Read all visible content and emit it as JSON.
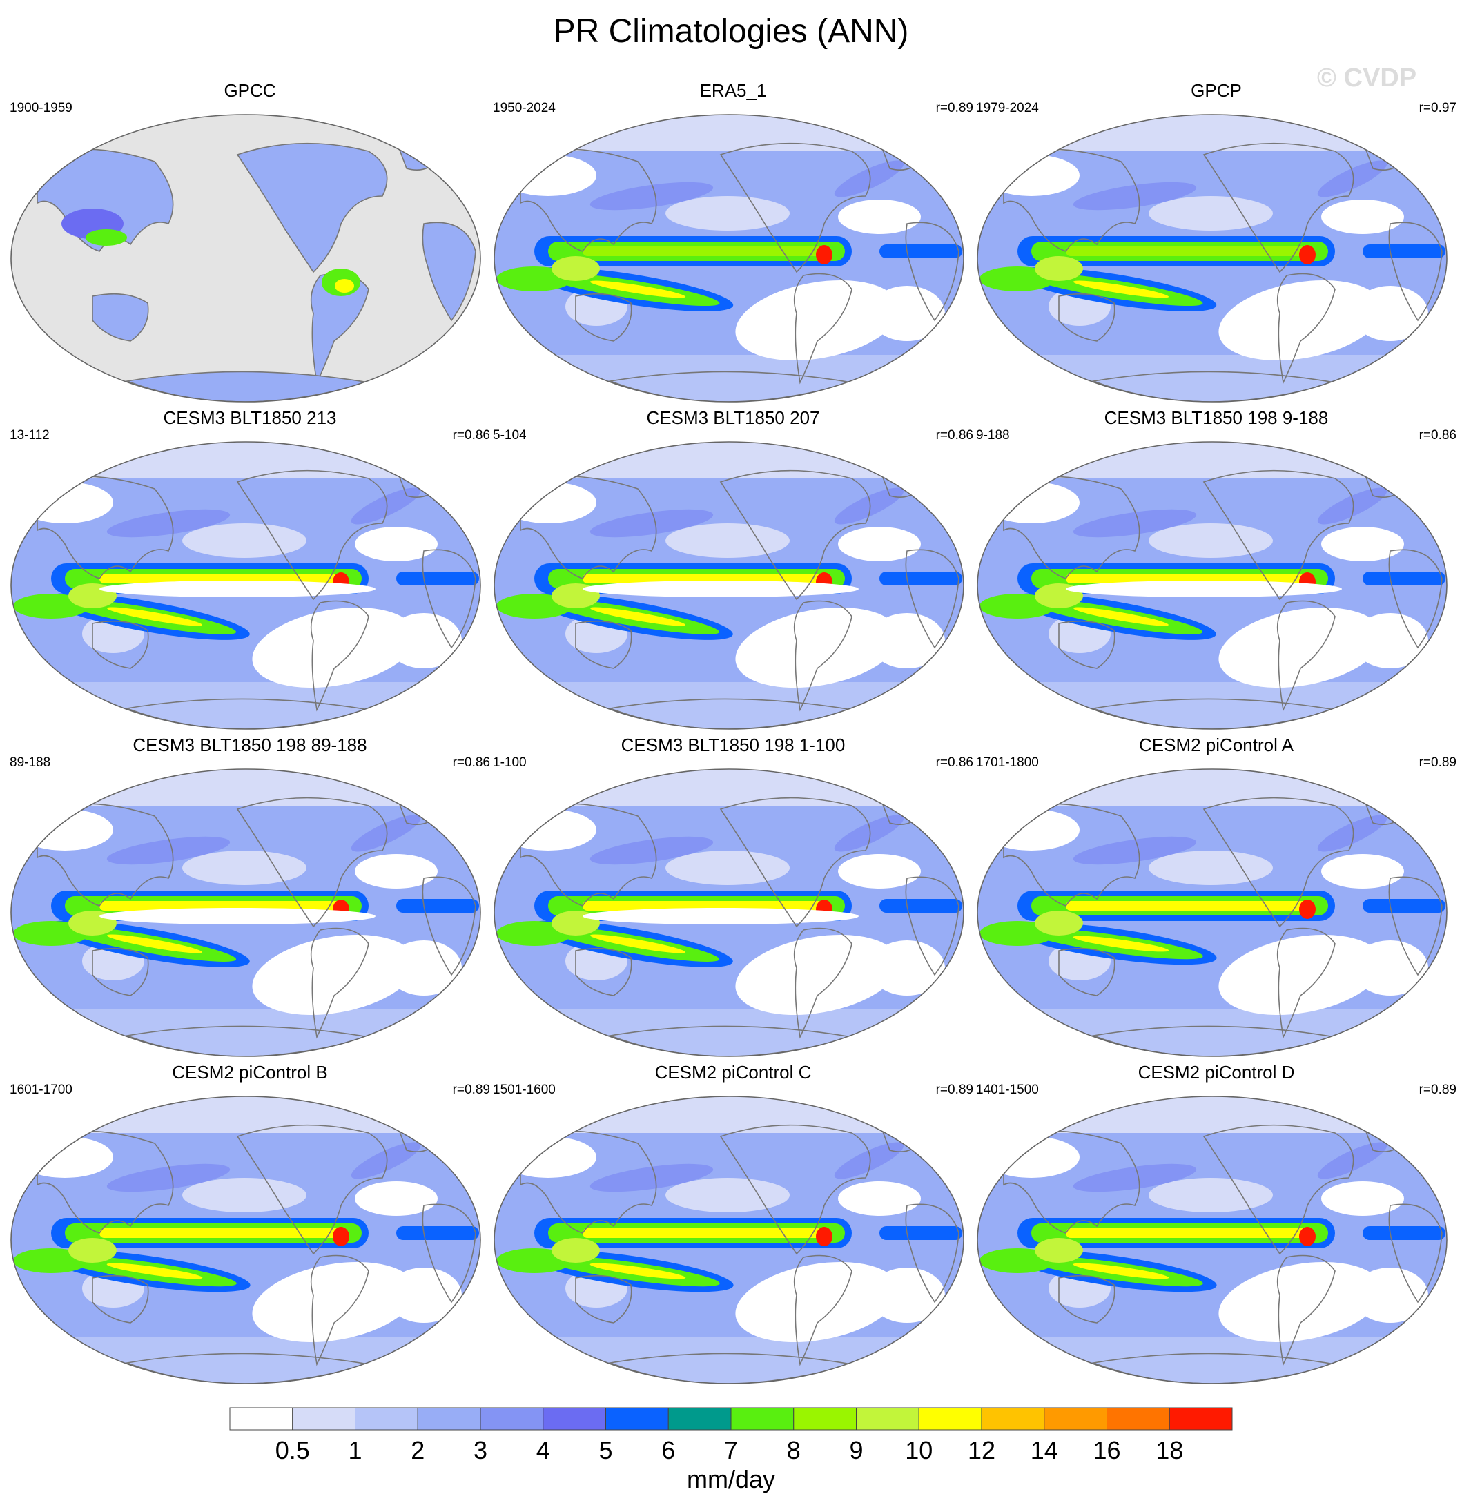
{
  "title": "PR Climatologies (ANN)",
  "watermark": "© CVDP",
  "panels": [
    {
      "title": "GPCC",
      "period": "1900-1959",
      "r": "",
      "variant": "land"
    },
    {
      "title": "ERA5_1",
      "period": "1950-2024",
      "r": "r=0.89",
      "variant": "obs"
    },
    {
      "title": "GPCP",
      "period": "1979-2024",
      "r": "r=0.97",
      "variant": "obs"
    },
    {
      "title": "CESM3 BLT1850 213",
      "period": "13-112",
      "r": "r=0.86",
      "variant": "cesm3"
    },
    {
      "title": "CESM3 BLT1850 207",
      "period": "5-104",
      "r": "r=0.86",
      "variant": "cesm3"
    },
    {
      "title": "CESM3 BLT1850 198 9-188",
      "period": "9-188",
      "r": "r=0.86",
      "variant": "cesm3"
    },
    {
      "title": "CESM3 BLT1850 198 89-188",
      "period": "89-188",
      "r": "r=0.86",
      "variant": "cesm3"
    },
    {
      "title": "CESM3 BLT1850 198 1-100",
      "period": "1-100",
      "r": "r=0.86",
      "variant": "cesm3"
    },
    {
      "title": "CESM2 piControl A",
      "period": "1701-1800",
      "r": "r=0.89",
      "variant": "cesm2"
    },
    {
      "title": "CESM2 piControl B",
      "period": "1601-1700",
      "r": "r=0.89",
      "variant": "cesm2"
    },
    {
      "title": "CESM2 piControl C",
      "period": "1501-1600",
      "r": "r=0.89",
      "variant": "cesm2"
    },
    {
      "title": "CESM2 piControl D",
      "period": "1401-1500",
      "r": "r=0.89",
      "variant": "cesm2"
    }
  ],
  "colorbar": {
    "units": "mm/day",
    "colors": [
      "#ffffff",
      "#d6dcf8",
      "#b5c4f8",
      "#98adf6",
      "#8494f4",
      "#6b6cf2",
      "#0a62ff",
      "#009a8c",
      "#59ef10",
      "#9af500",
      "#c2f53a",
      "#ffff00",
      "#ffc300",
      "#ff9a00",
      "#ff7400",
      "#ff1a00"
    ],
    "labels": [
      "0.5",
      "1",
      "2",
      "3",
      "4",
      "5",
      "6",
      "7",
      "8",
      "9",
      "10",
      "12",
      "14",
      "16",
      "18"
    ]
  }
}
